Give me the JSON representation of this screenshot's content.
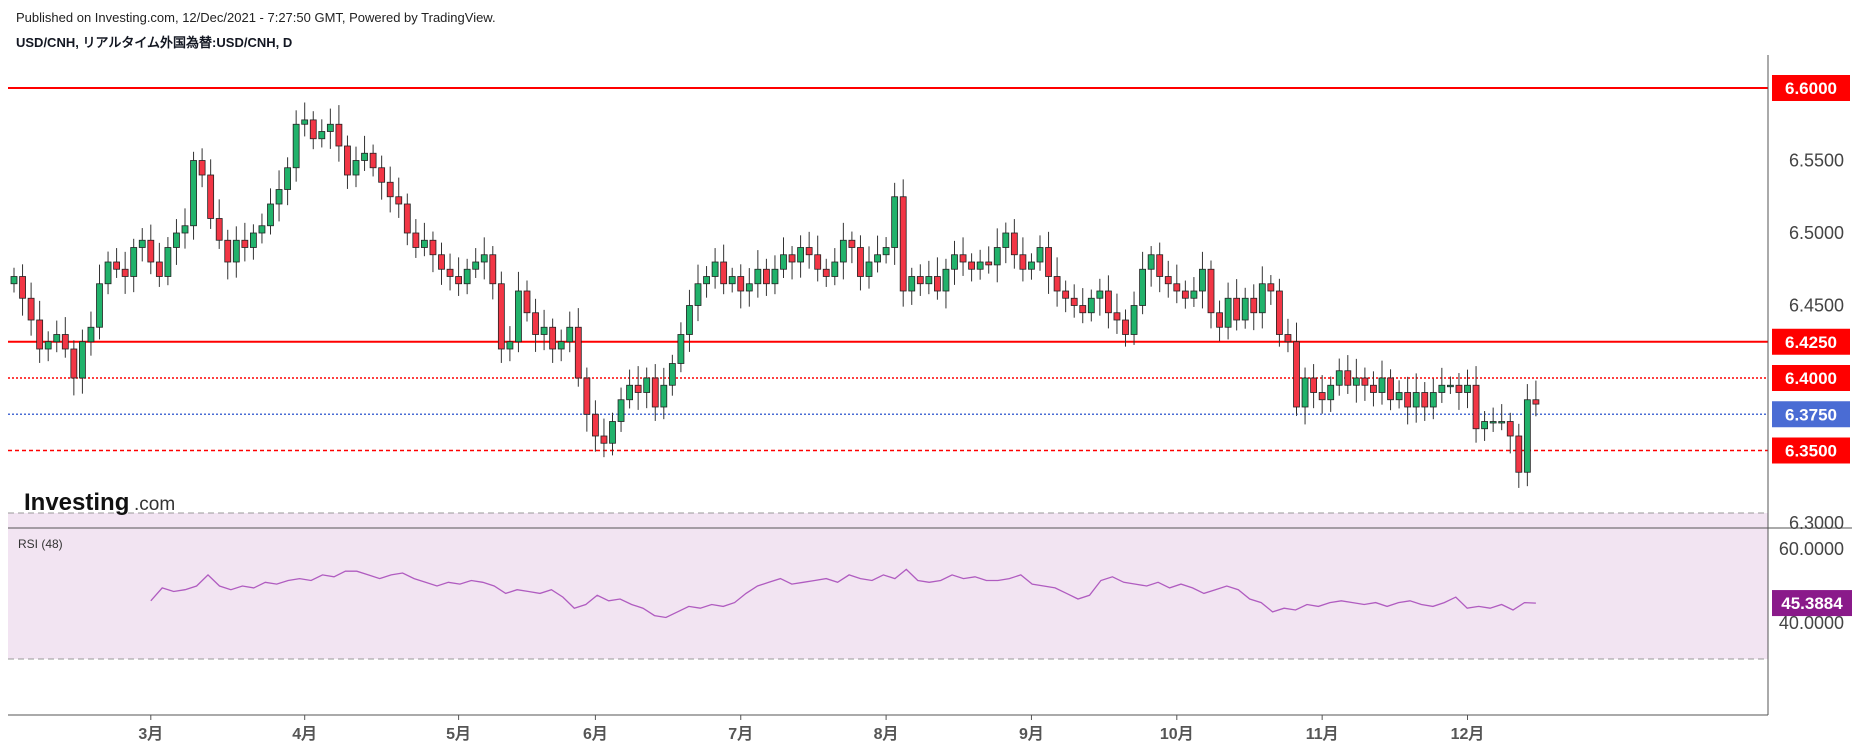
{
  "header": {
    "published": "Published on Investing.com, 12/Dec/2021 - 7:27:50 GMT, Powered by TradingView.",
    "symbol": "USD/CNH, リアルタイム外国為替:USD/CNH, D"
  },
  "logo": {
    "main": "Investing",
    "domain": ".com"
  },
  "colors": {
    "up": "#26a69a",
    "up_fill": "#21b26b",
    "down": "#ef5350",
    "down_fill": "#f23645",
    "level_red": "#ff0000",
    "level_blue": "#4a6cd4",
    "rsi_line": "#b05cc0",
    "rsi_band": "#f2e4f2",
    "rsi_badge": "#8a1a8a"
  },
  "chart_data": [
    {
      "type": "candlestick",
      "title": "USD/CNH, リアルタイム外国為替:USD/CNH, D",
      "ylim": [
        6.29,
        6.63
      ],
      "y_ticks": [
        "6.3000",
        "6.4500",
        "6.5000",
        "6.5500"
      ],
      "x_ticks": [
        "3月",
        "4月",
        "5月",
        "6月",
        "7月",
        "8月",
        "9月",
        "10月",
        "11月",
        "12月"
      ],
      "levels": [
        {
          "value": 6.6,
          "label": "6.6000",
          "style": "solid",
          "color": "#ff0000"
        },
        {
          "value": 6.425,
          "label": "6.4250",
          "style": "solid",
          "color": "#ff0000"
        },
        {
          "value": 6.4,
          "label": "6.4000",
          "style": "dotted",
          "color": "#ff0000"
        },
        {
          "value": 6.375,
          "label": "6.3750",
          "style": "dotted",
          "color": "#4a6cd4"
        },
        {
          "value": 6.35,
          "label": "6.3500",
          "style": "dashed",
          "color": "#ff0000"
        }
      ],
      "closes": [
        6.47,
        6.455,
        6.44,
        6.42,
        6.425,
        6.43,
        6.42,
        6.4,
        6.425,
        6.435,
        6.465,
        6.48,
        6.475,
        6.47,
        6.49,
        6.495,
        6.48,
        6.47,
        6.49,
        6.5,
        6.505,
        6.55,
        6.54,
        6.51,
        6.495,
        6.48,
        6.495,
        6.49,
        6.5,
        6.505,
        6.52,
        6.53,
        6.545,
        6.575,
        6.578,
        6.565,
        6.57,
        6.575,
        6.56,
        6.54,
        6.55,
        6.555,
        6.545,
        6.535,
        6.525,
        6.52,
        6.5,
        6.49,
        6.495,
        6.485,
        6.475,
        6.47,
        6.465,
        6.475,
        6.48,
        6.485,
        6.465,
        6.42,
        6.425,
        6.46,
        6.445,
        6.43,
        6.435,
        6.42,
        6.425,
        6.435,
        6.4,
        6.375,
        6.36,
        6.355,
        6.37,
        6.385,
        6.395,
        6.39,
        6.4,
        6.38,
        6.395,
        6.41,
        6.43,
        6.45,
        6.465,
        6.47,
        6.48,
        6.465,
        6.47,
        6.46,
        6.465,
        6.475,
        6.465,
        6.475,
        6.485,
        6.48,
        6.49,
        6.485,
        6.475,
        6.47,
        6.48,
        6.495,
        6.49,
        6.47,
        6.48,
        6.485,
        6.49,
        6.525,
        6.46,
        6.47,
        6.465,
        6.47,
        6.46,
        6.475,
        6.485,
        6.48,
        6.475,
        6.48,
        6.478,
        6.49,
        6.5,
        6.485,
        6.475,
        6.48,
        6.49,
        6.47,
        6.46,
        6.455,
        6.45,
        6.445,
        6.455,
        6.46,
        6.445,
        6.44,
        6.43,
        6.45,
        6.475,
        6.485,
        6.47,
        6.465,
        6.46,
        6.455,
        6.46,
        6.475,
        6.445,
        6.435,
        6.455,
        6.44,
        6.455,
        6.445,
        6.465,
        6.46,
        6.43,
        6.425,
        6.38,
        6.4,
        6.39,
        6.385,
        6.395,
        6.405,
        6.395,
        6.4,
        6.395,
        6.39,
        6.4,
        6.385,
        6.39,
        6.38,
        6.39,
        6.38,
        6.39,
        6.395,
        6.395,
        6.39,
        6.395,
        6.365,
        6.37,
        6.37,
        6.37,
        6.36,
        6.335,
        6.385,
        6.382
      ]
    },
    {
      "type": "line",
      "title": "RSI (48)",
      "ylim": [
        34,
        66
      ],
      "y_ticks": [
        "40.0000",
        "60.0000"
      ],
      "current_label": "45.3884",
      "x_start_day": 16,
      "values": [
        46,
        49.5,
        48.5,
        49,
        50,
        53,
        50,
        49,
        50,
        49.5,
        51,
        50.5,
        51.5,
        52,
        51.5,
        53,
        52.5,
        54,
        54,
        53,
        52,
        53,
        53.5,
        52,
        51,
        50,
        51,
        50.5,
        51.5,
        51,
        50,
        48,
        49,
        48.5,
        48,
        49,
        47,
        44,
        45,
        47.5,
        46,
        46.5,
        45,
        44,
        42,
        41.5,
        43,
        44.5,
        44,
        45,
        44.5,
        45.5,
        48,
        50,
        51,
        52,
        50.5,
        51,
        51.5,
        52,
        51,
        53,
        52,
        51.5,
        53,
        52,
        54.5,
        51.5,
        51,
        51.5,
        53,
        52,
        52.5,
        51.5,
        51.5,
        52,
        53,
        50.5,
        50,
        49.5,
        48,
        46.5,
        47.5,
        51.5,
        52.5,
        51,
        50.5,
        50,
        51,
        49.5,
        50.5,
        49.5,
        48,
        49,
        50,
        49,
        46.5,
        45.5,
        43,
        44,
        43.5,
        45,
        44.5,
        45.5,
        46,
        45.5,
        45,
        45.5,
        44.5,
        45.5,
        46,
        45,
        44.5,
        45.5,
        47,
        44,
        44.5,
        44,
        45,
        43.5,
        45.5,
        45.3884
      ]
    }
  ]
}
